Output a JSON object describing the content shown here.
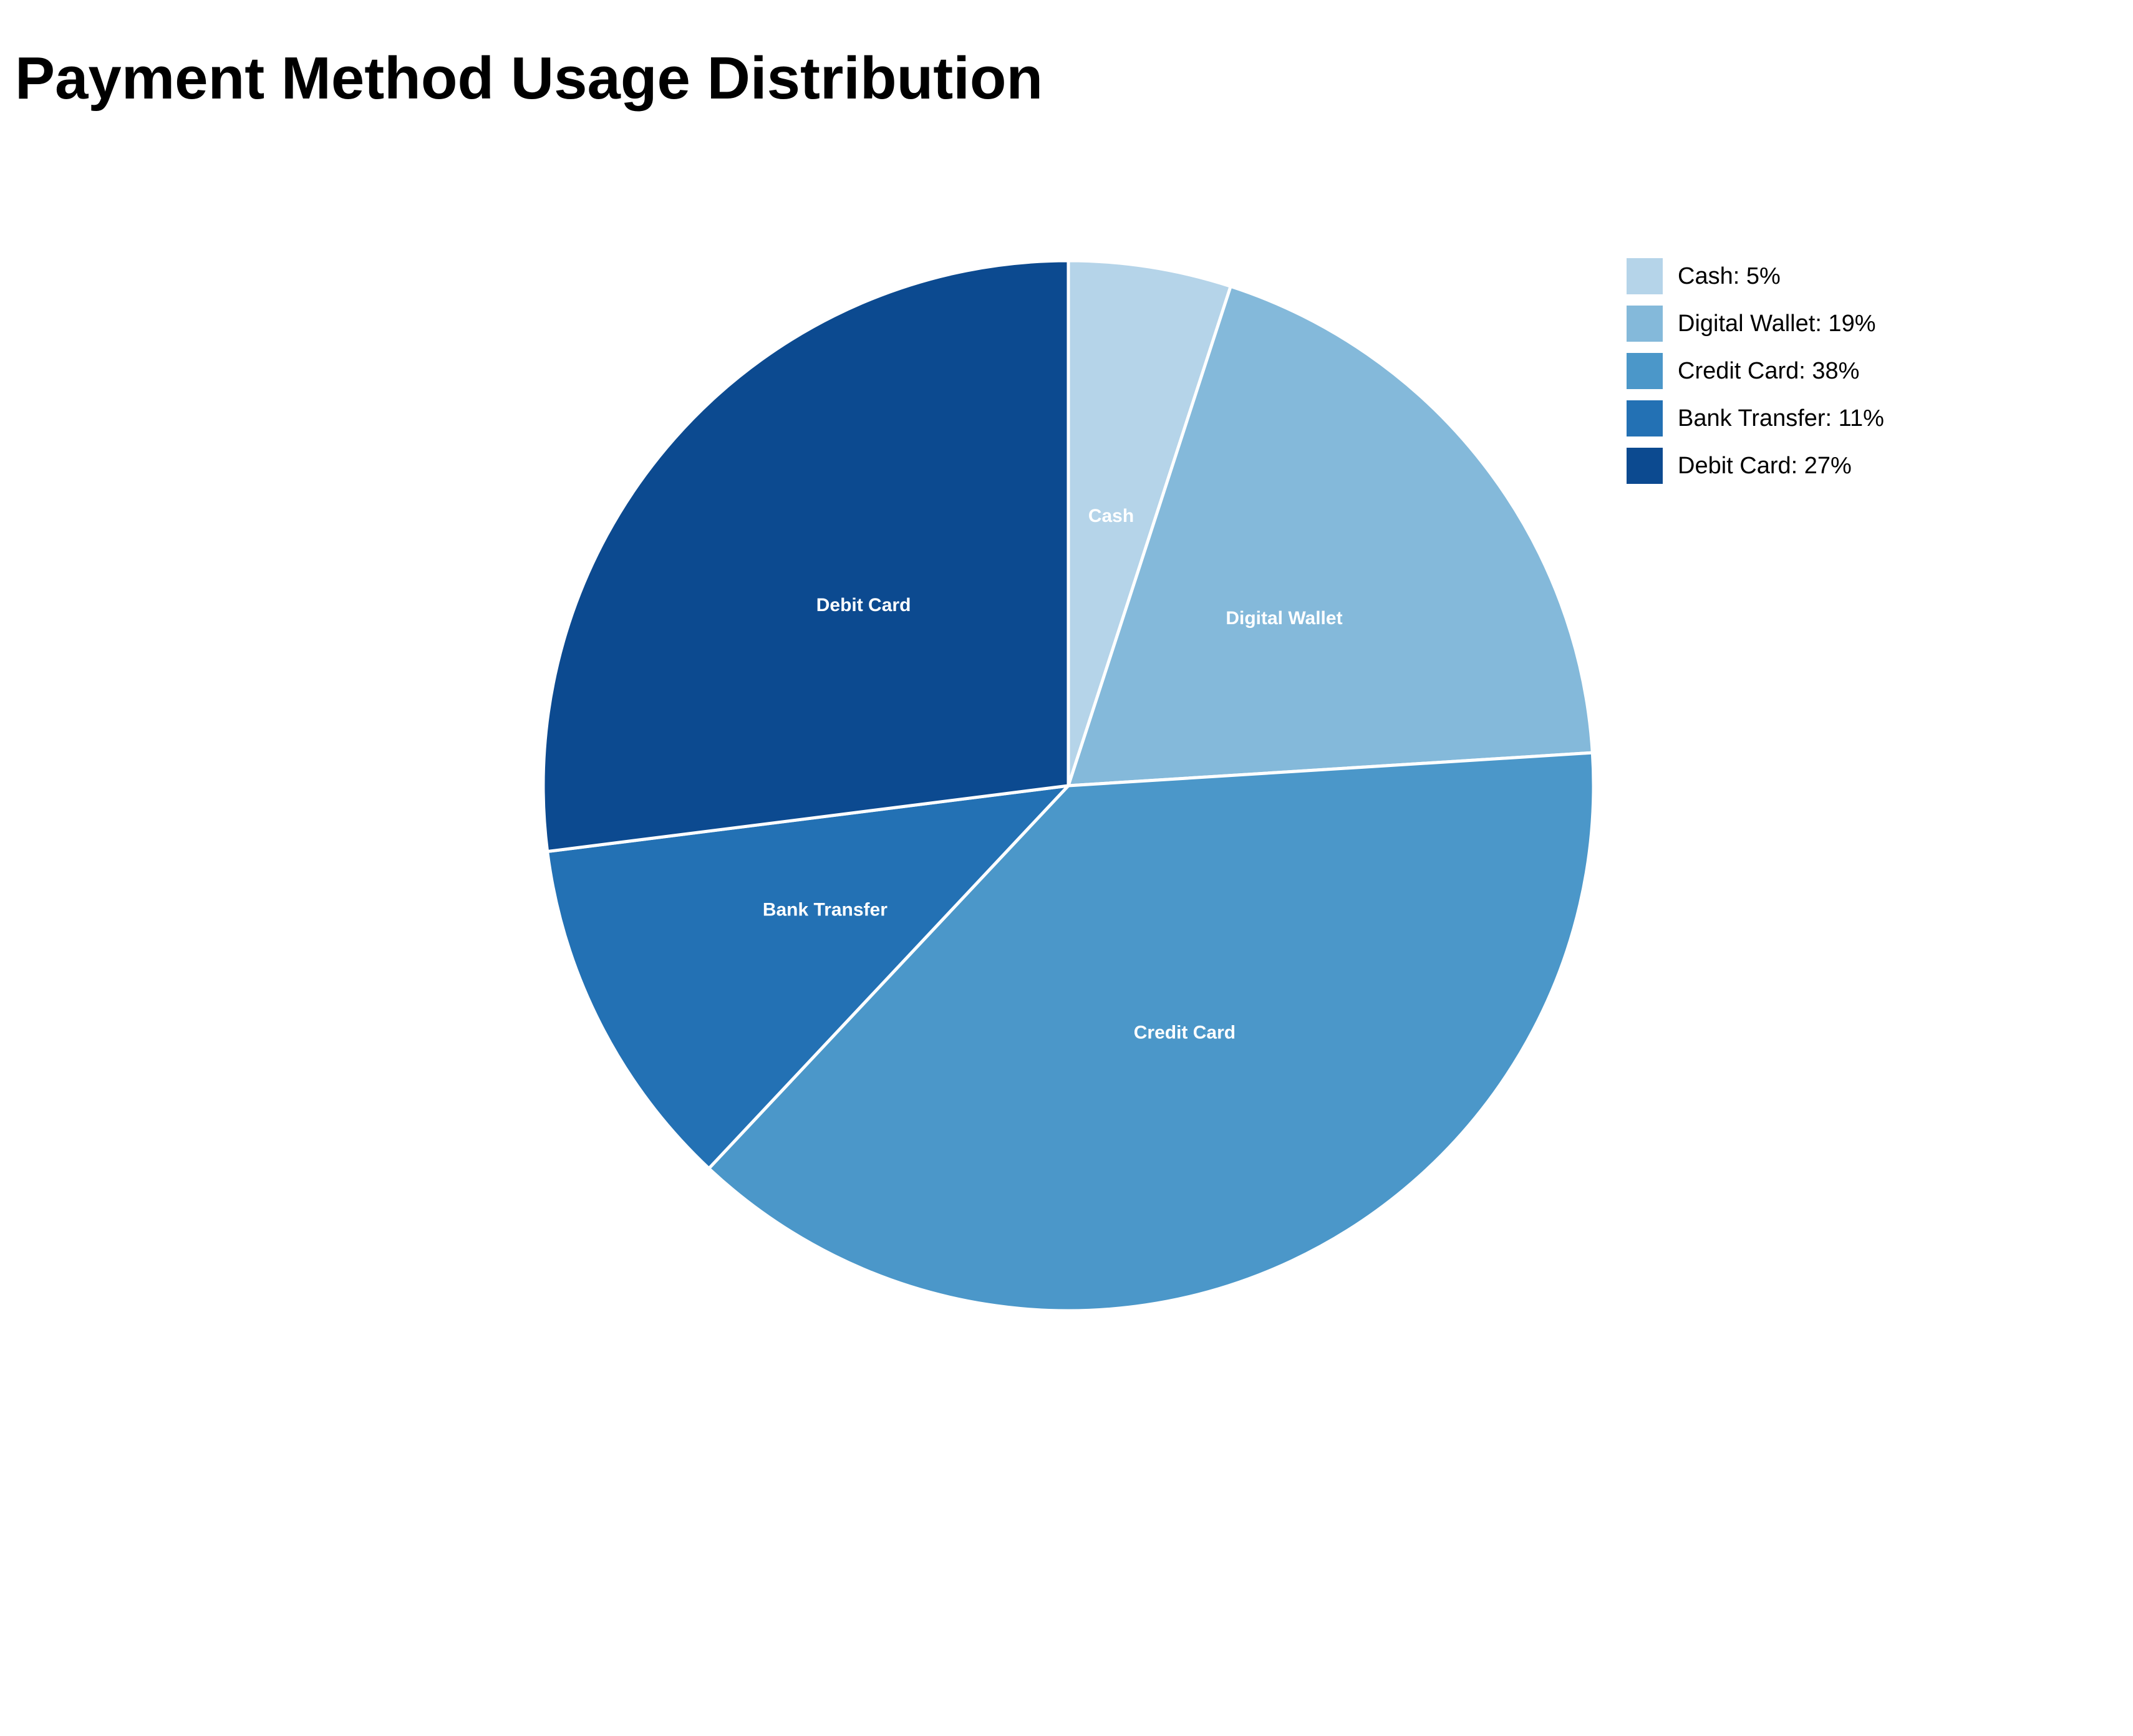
{
  "chart_data": {
    "type": "pie",
    "title": "Payment Method Usage Distribution",
    "slices": [
      {
        "label": "Cash",
        "value": 5,
        "color": "#b5d4e9",
        "legend": "Cash: 5%"
      },
      {
        "label": "Digital Wallet",
        "value": 19,
        "color": "#84b9da",
        "legend": "Digital Wallet: 19%"
      },
      {
        "label": "Credit Card",
        "value": 38,
        "color": "#4b97c9",
        "legend": "Credit Card: 38%"
      },
      {
        "label": "Bank Transfer",
        "value": 11,
        "color": "#2371b4",
        "legend": "Bank Transfer: 11%"
      },
      {
        "label": "Debit Card",
        "value": 27,
        "color": "#0c4a90",
        "legend": "Debit Card: 27%"
      }
    ],
    "legend_position": "top-right"
  }
}
